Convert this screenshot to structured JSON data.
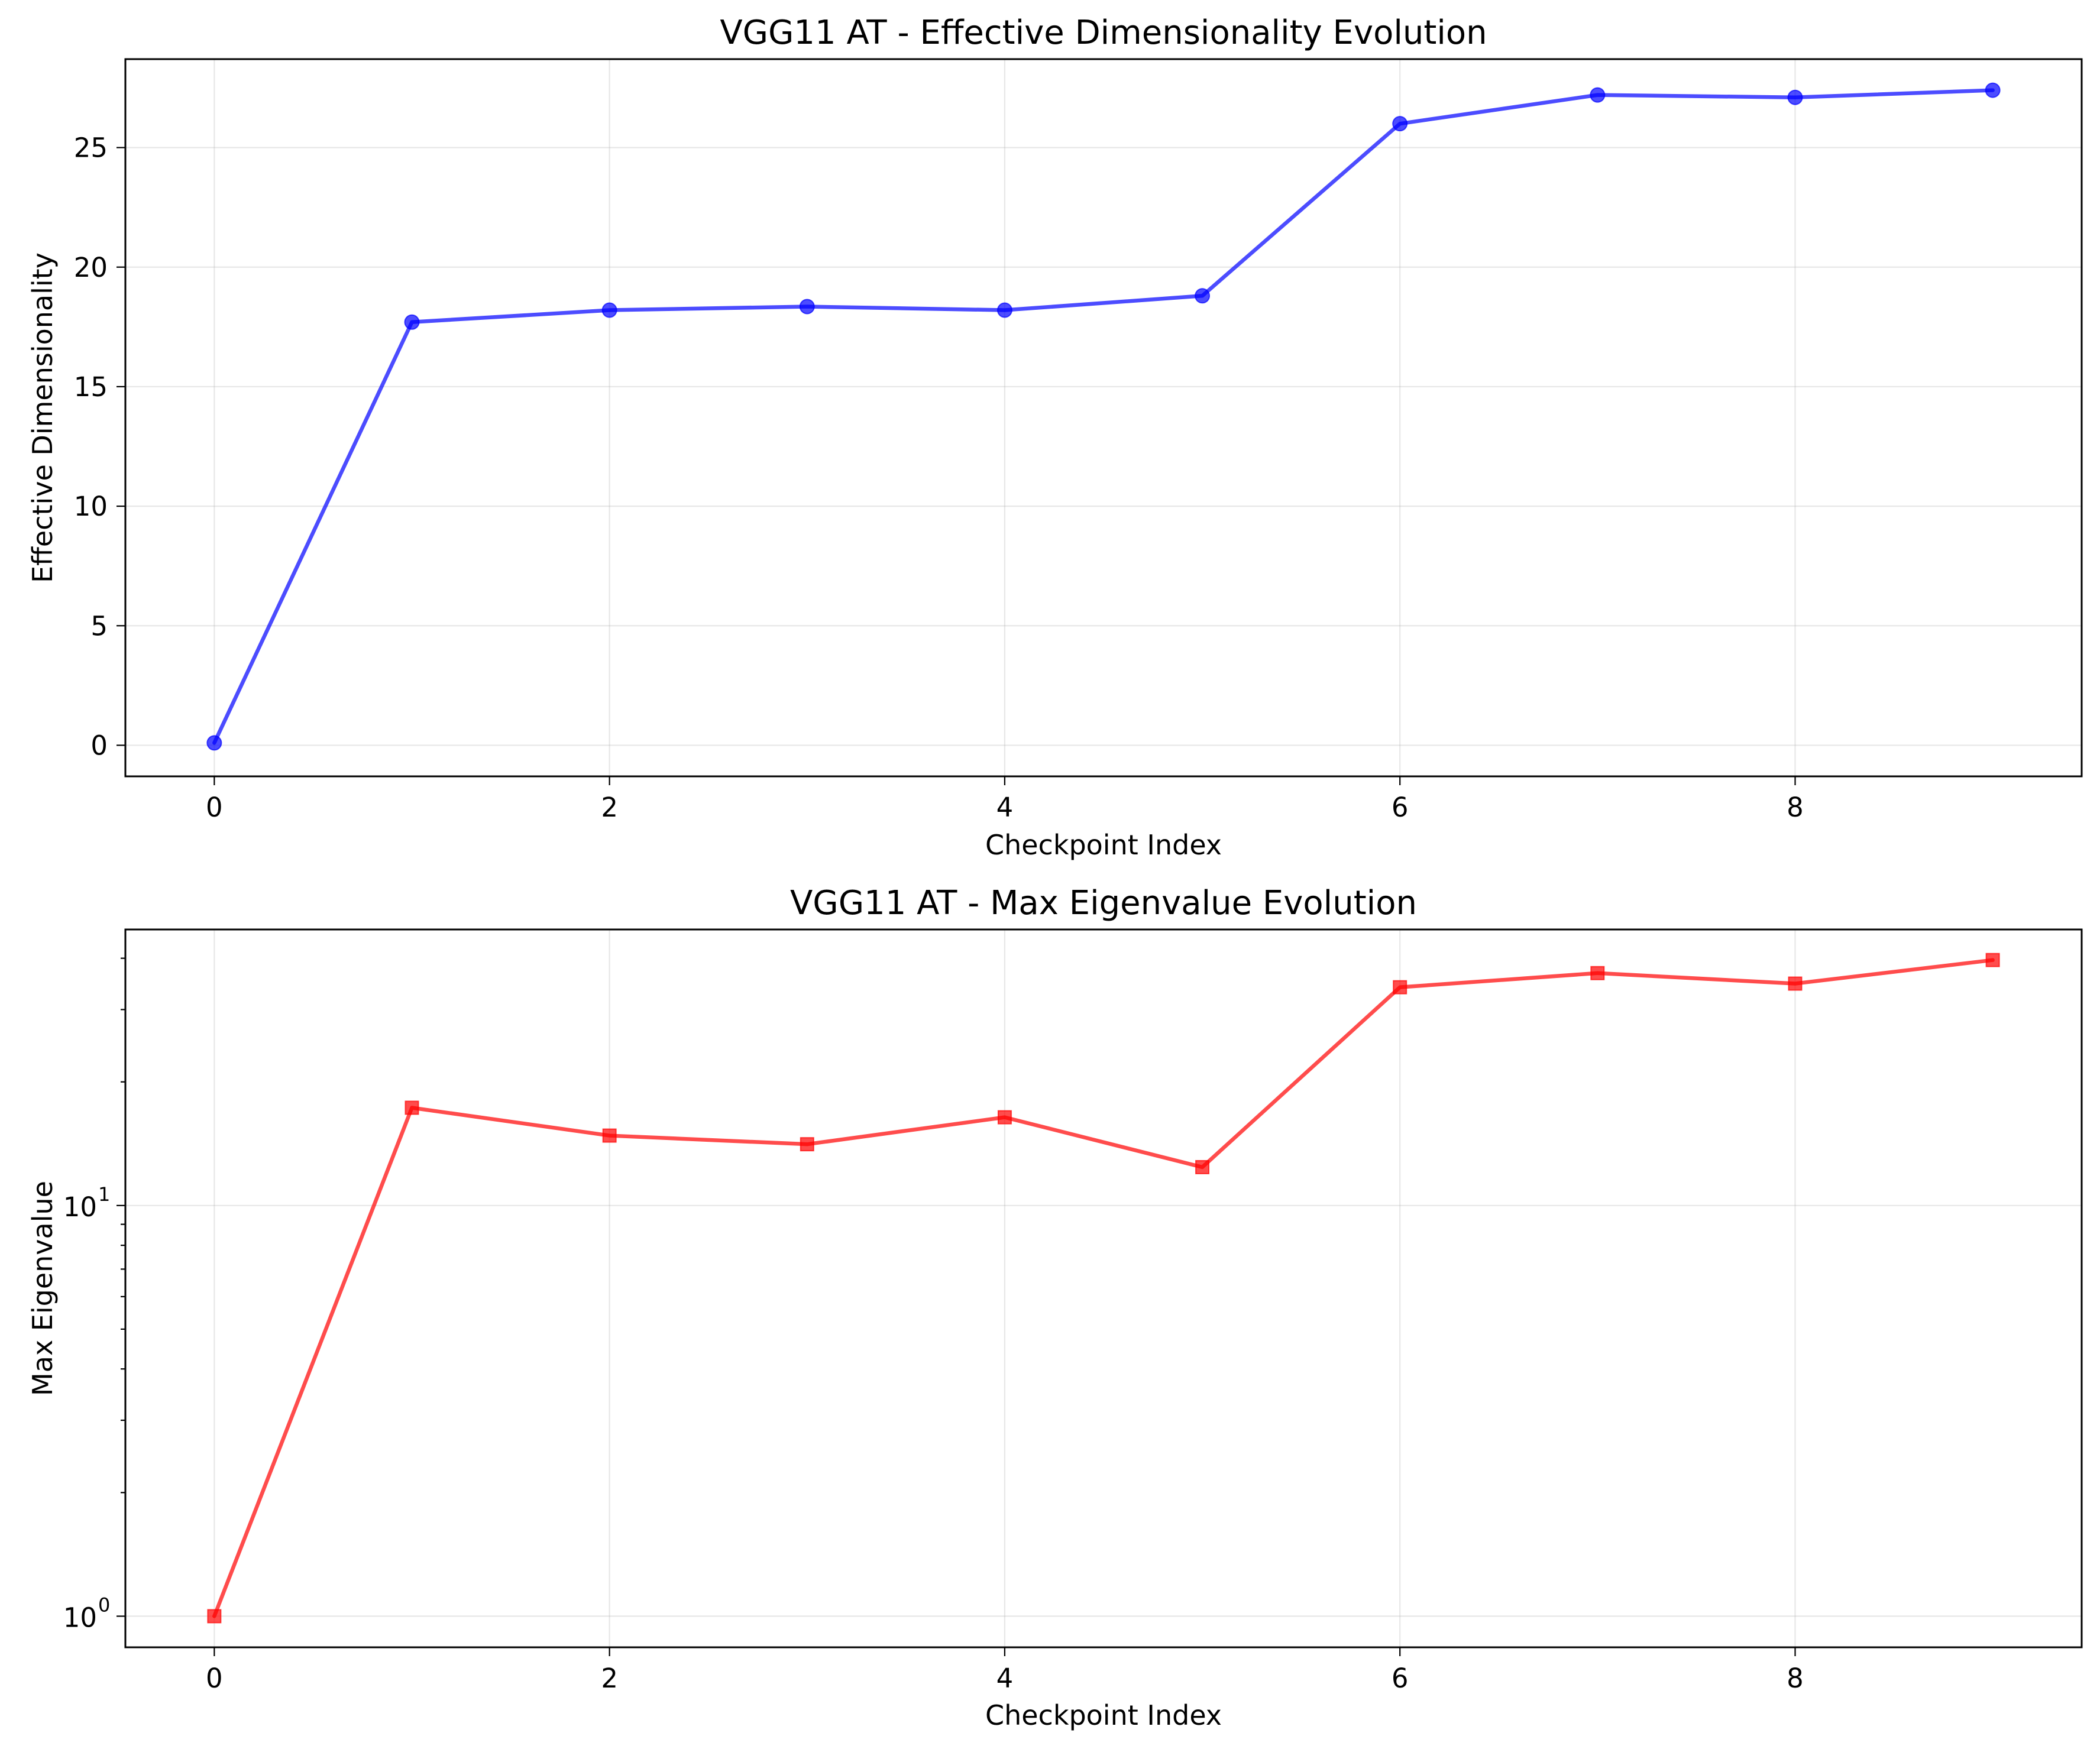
{
  "colors": {
    "top_series": "#0000ff",
    "bottom_series": "#ff0000"
  },
  "chart_data": [
    {
      "type": "line",
      "title": "VGG11 AT - Effective Dimensionality Evolution",
      "xlabel": "Checkpoint Index",
      "ylabel": "Effective Dimensionality",
      "xlim": [
        -0.45,
        9.45
      ],
      "ylim": [
        -1.3,
        28.7
      ],
      "xticks": [
        0,
        2,
        4,
        6,
        8
      ],
      "yticks": [
        0,
        5,
        10,
        15,
        20,
        25
      ],
      "grid": true,
      "marker": "circle",
      "series": [
        {
          "x": [
            0,
            1,
            2,
            3,
            4,
            5,
            6,
            7,
            8,
            9
          ],
          "values": [
            0.1,
            17.7,
            18.2,
            18.35,
            18.2,
            18.8,
            26.0,
            27.2,
            27.1,
            27.4
          ]
        }
      ]
    },
    {
      "type": "line",
      "title": "VGG11 AT - Max Eigenvalue Evolution",
      "xlabel": "Checkpoint Index",
      "ylabel": "Max Eigenvalue",
      "xlim": [
        -0.45,
        9.45
      ],
      "ylim": [
        0.84,
        47
      ],
      "yscale": "log",
      "xticks": [
        0,
        2,
        4,
        6,
        8
      ],
      "yticks_major": [
        {
          "value": 1,
          "base": "10",
          "exp": "0"
        },
        {
          "value": 10,
          "base": "10",
          "exp": "1"
        }
      ],
      "yticks_minor": [
        2,
        3,
        4,
        5,
        6,
        7,
        8,
        9,
        20,
        30,
        40
      ],
      "grid": true,
      "marker": "square",
      "series": [
        {
          "x": [
            0,
            1,
            2,
            3,
            4,
            5,
            6,
            7,
            8,
            9
          ],
          "values": [
            1.0,
            17.3,
            14.8,
            14.1,
            16.4,
            12.4,
            34.0,
            36.8,
            34.7,
            39.6
          ]
        }
      ]
    }
  ]
}
